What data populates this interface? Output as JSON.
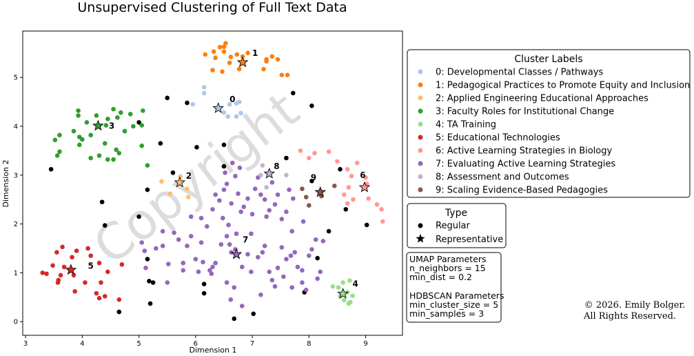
{
  "chart_data": {
    "type": "scatter",
    "title": "Unsupervised Clustering of Full Text Data",
    "xlabel": "Dimension 1",
    "ylabel": "Dimension 2",
    "xlim": [
      2.95,
      9.65
    ],
    "ylim": [
      -0.28,
      5.95
    ],
    "xticks": [
      3,
      4,
      5,
      6,
      7,
      8,
      9
    ],
    "yticks": [
      0,
      1,
      2,
      3,
      4,
      5
    ],
    "grid": false,
    "clusters": [
      {
        "id": "0",
        "name": "0: Developmental Classes / Pathways",
        "color": "#aec7e8",
        "representative": [
          6.4,
          4.37
        ],
        "label_at": [
          6.65,
          4.55
        ],
        "points": [
          [
            6.15,
            4.68
          ],
          [
            6.15,
            4.8
          ],
          [
            5.95,
            4.45
          ],
          [
            6.5,
            4.28
          ],
          [
            6.6,
            4.45
          ],
          [
            6.72,
            4.47
          ],
          [
            6.77,
            4.5
          ],
          [
            6.8,
            4.27
          ],
          [
            6.57,
            4.2
          ],
          [
            6.72,
            4.2
          ]
        ]
      },
      {
        "id": "1",
        "name": "1: Pedagogical Practices to Promote Equity and Inclusion",
        "color": "#ff7f0e",
        "representative": [
          6.83,
          5.31
        ],
        "label_at": [
          7.05,
          5.5
        ],
        "points": [
          [
            6.17,
            5.47
          ],
          [
            6.32,
            5.53
          ],
          [
            6.43,
            5.62
          ],
          [
            6.5,
            5.63
          ],
          [
            6.5,
            5.53
          ],
          [
            6.53,
            5.7
          ],
          [
            6.35,
            5.4
          ],
          [
            6.62,
            5.42
          ],
          [
            6.73,
            5.47
          ],
          [
            6.83,
            5.43
          ],
          [
            6.92,
            5.5
          ],
          [
            7.25,
            5.33
          ],
          [
            7.25,
            5.37
          ],
          [
            7.35,
            5.43
          ],
          [
            7.45,
            5.37
          ],
          [
            7.2,
            5.17
          ],
          [
            7.52,
            5.05
          ],
          [
            7.62,
            5.05
          ],
          [
            6.3,
            5.15
          ],
          [
            6.47,
            5.12
          ],
          [
            6.6,
            5.3
          ],
          [
            6.77,
            5.17
          ]
        ]
      },
      {
        "id": "2",
        "name": "2: Applied Engineering Educational Approaches",
        "color": "#ffbb78",
        "representative": [
          5.72,
          2.85
        ],
        "label_at": [
          5.88,
          2.98
        ],
        "points": [
          [
            5.4,
            2.87
          ],
          [
            5.55,
            2.62
          ],
          [
            5.73,
            2.97
          ],
          [
            5.85,
            2.72
          ],
          [
            5.87,
            2.55
          ]
        ]
      },
      {
        "id": "3",
        "name": "3: Faculty Roles for Institutional Change",
        "color": "#2ca02c",
        "representative": [
          4.28,
          4.01
        ],
        "label_at": [
          4.52,
          4.01
        ],
        "points": [
          [
            3.93,
            4.32
          ],
          [
            3.93,
            4.22
          ],
          [
            3.85,
            3.9
          ],
          [
            3.95,
            3.78
          ],
          [
            4.08,
            4.08
          ],
          [
            4.25,
            4.22
          ],
          [
            4.42,
            4.02
          ],
          [
            4.45,
            4.15
          ],
          [
            4.55,
            4.35
          ],
          [
            4.68,
            4.28
          ],
          [
            4.62,
            4.18
          ],
          [
            4.85,
            4.25
          ],
          [
            4.75,
            3.9
          ],
          [
            4.9,
            4.0
          ],
          [
            5.05,
            4.02
          ],
          [
            5.07,
            4.32
          ],
          [
            4.3,
            3.4
          ],
          [
            4.45,
            3.32
          ],
          [
            4.4,
            3.65
          ],
          [
            4.6,
            3.52
          ],
          [
            4.65,
            3.45
          ],
          [
            4.55,
            3.32
          ],
          [
            4.15,
            3.35
          ],
          [
            4.0,
            3.73
          ],
          [
            4.15,
            3.82
          ],
          [
            3.95,
            3.62
          ],
          [
            3.52,
            3.72
          ],
          [
            3.6,
            3.82
          ],
          [
            3.6,
            3.48
          ],
          [
            3.56,
            3.4
          ],
          [
            5.05,
            3.6
          ],
          [
            5.15,
            3.2
          ]
        ]
      },
      {
        "id": "4",
        "name": "4: TA Training",
        "color": "#98df8a",
        "representative": [
          8.6,
          0.57
        ],
        "label_at": [
          8.82,
          0.77
        ],
        "points": [
          [
            8.42,
            0.72
          ],
          [
            8.52,
            0.7
          ],
          [
            8.6,
            0.8
          ],
          [
            8.72,
            0.84
          ],
          [
            8.68,
            0.6
          ],
          [
            8.77,
            0.53
          ],
          [
            8.62,
            0.44
          ],
          [
            8.7,
            0.37
          ],
          [
            8.73,
            0.4
          ],
          [
            8.55,
            0.52
          ]
        ]
      },
      {
        "id": "5",
        "name": "5: Educational Technologies",
        "color": "#d62728",
        "representative": [
          3.8,
          1.06
        ],
        "label_at": [
          4.15,
          1.14
        ],
        "points": [
          [
            3.3,
            1.0
          ],
          [
            3.37,
            0.98
          ],
          [
            3.48,
            1.15
          ],
          [
            3.65,
            1.53
          ],
          [
            3.55,
            1.42
          ],
          [
            3.9,
            1.45
          ],
          [
            3.82,
            1.32
          ],
          [
            3.62,
            0.95
          ],
          [
            3.68,
            1.12
          ],
          [
            3.58,
            0.85
          ],
          [
            3.57,
            0.8
          ],
          [
            3.85,
            0.95
          ],
          [
            3.87,
            0.62
          ],
          [
            4.05,
            0.8
          ],
          [
            4.1,
            1.5
          ],
          [
            4.15,
            1.35
          ],
          [
            4.3,
            1.2
          ],
          [
            4.25,
            0.58
          ],
          [
            4.3,
            0.48
          ],
          [
            4.4,
            0.52
          ],
          [
            4.33,
            0.8
          ],
          [
            4.45,
            1.02
          ],
          [
            4.65,
            0.45
          ],
          [
            4.7,
            1.17
          ]
        ]
      },
      {
        "id": "6",
        "name": "6: Active Learning Strategies in Biology",
        "color": "#ff9896",
        "representative": [
          8.98,
          2.75
        ],
        "label_at": [
          8.95,
          3.0
        ],
        "points": [
          [
            7.85,
            3.5
          ],
          [
            8.0,
            3.35
          ],
          [
            8.1,
            3.45
          ],
          [
            8.35,
            3.48
          ],
          [
            8.5,
            3.28
          ],
          [
            8.68,
            3.12
          ],
          [
            8.85,
            3.25
          ],
          [
            8.75,
            2.98
          ],
          [
            8.7,
            2.75
          ],
          [
            8.68,
            2.42
          ],
          [
            8.78,
            2.5
          ],
          [
            9.0,
            2.95
          ],
          [
            9.02,
            2.82
          ],
          [
            9.05,
            2.52
          ],
          [
            9.2,
            2.4
          ],
          [
            9.28,
            2.3
          ],
          [
            9.3,
            2.05
          ],
          [
            8.62,
            2.6
          ]
        ]
      },
      {
        "id": "7",
        "name": "7: Evaluating Active Learning Strategies",
        "color": "#9467bd",
        "representative": [
          6.72,
          1.38
        ],
        "label_at": [
          6.88,
          1.68
        ],
        "points": [
          [
            5.05,
            1.62
          ],
          [
            5.1,
            1.45
          ],
          [
            5.12,
            1.1
          ],
          [
            5.3,
            1.5
          ],
          [
            5.42,
            1.55
          ],
          [
            5.5,
            0.8
          ],
          [
            5.52,
            1.18
          ],
          [
            5.62,
            1.82
          ],
          [
            5.7,
            1.68
          ],
          [
            5.78,
            1.2
          ],
          [
            5.85,
            1.55
          ],
          [
            5.92,
            1.75
          ],
          [
            6.0,
            1.28
          ],
          [
            6.05,
            1.02
          ],
          [
            6.1,
            1.62
          ],
          [
            6.13,
            1.22
          ],
          [
            6.28,
            0.98
          ],
          [
            6.3,
            1.12
          ],
          [
            6.45,
            1.58
          ],
          [
            6.55,
            1.75
          ],
          [
            6.6,
            1.58
          ],
          [
            6.63,
            1.42
          ],
          [
            6.7,
            1.48
          ],
          [
            6.72,
            1.8
          ],
          [
            6.82,
            1.12
          ],
          [
            6.92,
            1.38
          ],
          [
            6.98,
            1.02
          ],
          [
            7.1,
            1.32
          ],
          [
            7.18,
            1.42
          ],
          [
            7.22,
            1.55
          ],
          [
            7.3,
            1.02
          ],
          [
            7.35,
            0.85
          ],
          [
            7.4,
            0.72
          ],
          [
            7.45,
            1.1
          ],
          [
            7.52,
            1.52
          ],
          [
            7.6,
            1.28
          ],
          [
            7.68,
            1.35
          ],
          [
            7.7,
            0.7
          ],
          [
            7.75,
            1.42
          ],
          [
            7.8,
            1.12
          ],
          [
            7.88,
            0.8
          ],
          [
            7.88,
            1.05
          ],
          [
            8.0,
            1.35
          ],
          [
            8.05,
            1.48
          ],
          [
            8.12,
            1.68
          ],
          [
            8.15,
            0.88
          ],
          [
            8.2,
            1.02
          ],
          [
            8.25,
            1.65
          ],
          [
            6.35,
            2.6
          ],
          [
            6.42,
            2.48
          ],
          [
            6.5,
            2.7
          ],
          [
            6.52,
            3.05
          ],
          [
            6.55,
            2.82
          ],
          [
            6.63,
            2.42
          ],
          [
            6.7,
            2.98
          ],
          [
            6.75,
            2.62
          ],
          [
            6.8,
            2.25
          ],
          [
            6.85,
            2.35
          ],
          [
            6.92,
            2.52
          ],
          [
            7.0,
            2.2
          ],
          [
            7.05,
            2.72
          ],
          [
            7.1,
            2.95
          ],
          [
            7.15,
            2.6
          ],
          [
            7.22,
            2.5
          ],
          [
            7.25,
            2.15
          ],
          [
            7.3,
            2.28
          ],
          [
            7.35,
            2.85
          ],
          [
            7.4,
            2.4
          ],
          [
            7.45,
            2.6
          ],
          [
            7.52,
            2.1
          ],
          [
            7.6,
            2.25
          ],
          [
            7.65,
            2.7
          ],
          [
            7.72,
            2.52
          ],
          [
            6.1,
            2.12
          ],
          [
            6.2,
            1.95
          ],
          [
            6.3,
            2.3
          ],
          [
            6.48,
            2.12
          ],
          [
            6.58,
            1.98
          ],
          [
            6.65,
            3.25
          ],
          [
            6.78,
            3.15
          ],
          [
            6.25,
            1.05
          ],
          [
            6.35,
            1.2
          ],
          [
            6.55,
            0.8
          ],
          [
            6.68,
            0.7
          ],
          [
            6.62,
            0.45
          ],
          [
            6.82,
            0.32
          ],
          [
            7.15,
            0.55
          ],
          [
            7.55,
            0.92
          ],
          [
            7.95,
            0.65
          ],
          [
            5.78,
            1.05
          ],
          [
            5.42,
            1.85
          ],
          [
            5.92,
            2.15
          ],
          [
            7.7,
            1.85
          ],
          [
            7.9,
            2.05
          ],
          [
            6.98,
            1.8
          ]
        ]
      },
      {
        "id": "8",
        "name": "8: Assessment and Outcomes",
        "color": "#c5b0d5",
        "representative": [
          7.3,
          3.03
        ],
        "label_at": [
          7.43,
          3.18
        ],
        "points": [
          [
            7.15,
            3.0
          ],
          [
            7.25,
            2.75
          ],
          [
            7.6,
            3.0
          ],
          [
            7.18,
            3.2
          ]
        ]
      },
      {
        "id": "9",
        "name": "9: Scaling Evidence-Based Pedagogies",
        "color": "#8c564b",
        "representative": [
          8.2,
          2.65
        ],
        "label_at": [
          8.08,
          2.95
        ],
        "points": [
          [
            7.88,
            2.72
          ],
          [
            7.95,
            2.55
          ],
          [
            8.0,
            2.38
          ],
          [
            8.22,
            2.57
          ],
          [
            8.45,
            2.78
          ]
        ]
      }
    ],
    "regular_black_points": [
      [
        3.45,
        3.12
      ],
      [
        4.35,
        2.45
      ],
      [
        4.4,
        1.97
      ],
      [
        4.65,
        0.2
      ],
      [
        5.0,
        4.08
      ],
      [
        5.0,
        2.15
      ],
      [
        5.15,
        2.7
      ],
      [
        5.15,
        1.28
      ],
      [
        5.18,
        0.83
      ],
      [
        5.2,
        0.37
      ],
      [
        5.25,
        0.8
      ],
      [
        5.38,
        3.65
      ],
      [
        5.5,
        4.58
      ],
      [
        5.85,
        4.48
      ],
      [
        6.02,
        3.57
      ],
      [
        6.15,
        0.77
      ],
      [
        6.15,
        0.58
      ],
      [
        6.5,
        3.62
      ],
      [
        6.5,
        3.18
      ],
      [
        6.68,
        0.06
      ],
      [
        7.02,
        0.16
      ],
      [
        7.6,
        3.35
      ],
      [
        7.72,
        4.68
      ],
      [
        7.92,
        0.6
      ],
      [
        8.05,
        4.42
      ],
      [
        8.05,
        2.88
      ],
      [
        8.15,
        1.3
      ],
      [
        8.35,
        1.85
      ],
      [
        8.55,
        3.12
      ],
      [
        8.65,
        2.3
      ],
      [
        9.02,
        1.98
      ],
      [
        5.6,
        3.05
      ]
    ],
    "legend_clusters_title": "Cluster Labels",
    "legend_type": {
      "title": "Type",
      "regular": "Regular",
      "representative": "Representative"
    },
    "watermark": "Copyright"
  },
  "params": {
    "umap_title": "UMAP Parameters",
    "umap_lines": [
      "n_neighbors = 15",
      "min_dist = 0.2"
    ],
    "hdbscan_title": "HDBSCAN Parameters",
    "hdbscan_lines": [
      "min_cluster_size = 5",
      "min_samples = 3"
    ]
  },
  "copyright": {
    "line1": "© 2026. Emily Bolger.",
    "line2": "All Rights Reserved."
  }
}
